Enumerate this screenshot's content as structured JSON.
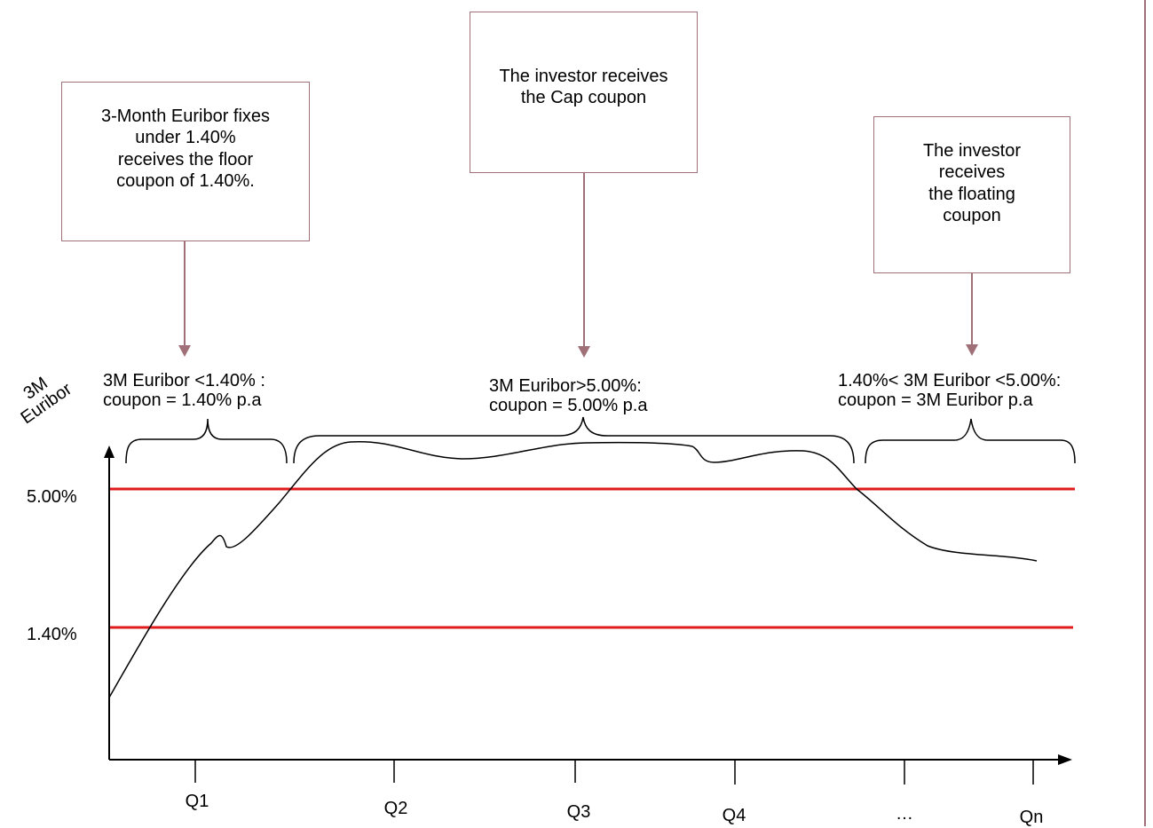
{
  "colors": {
    "threshold_line": "#e01b1b",
    "callout_border": "#a07078",
    "arrow": "#a07078",
    "curve": "#000000",
    "axis": "#000000"
  },
  "callouts": {
    "floor": "3-Month Euribor fixes\nunder 1.40%\nreceives the floor\ncoupon of 1.40%.",
    "cap": "The investor receives\nthe Cap coupon",
    "floating": "The investor\nreceives\nthe floating\ncoupon"
  },
  "regions": {
    "floor": "3M  Euribor <1.40% :\ncoupon = 1.40% p.a",
    "cap": "3M  Euribor>5.00%:\ncoupon = 5.00% p.a",
    "floating": "1.40%< 3M  Euribor <5.00%:\ncoupon = 3M Euribor p.a"
  },
  "y_axis_title": "3M\nEuribor",
  "levels": {
    "cap": "5.00%",
    "floor": "1.40%"
  },
  "x_ticks": [
    "Q1",
    "Q2",
    "Q3",
    "Q4",
    "…",
    "Qn"
  ],
  "icons": {
    "callout_arrows": "down-arrow-icon",
    "axis_arrows": "axis-arrow-icon"
  }
}
